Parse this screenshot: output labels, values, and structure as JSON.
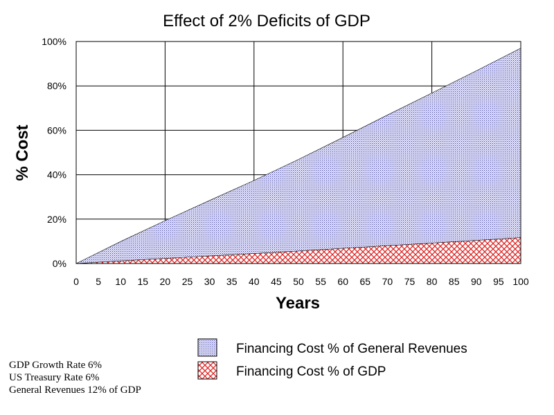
{
  "chart_data": {
    "type": "area",
    "stacked": false,
    "title": "Effect of 2% Deficits of GDP",
    "xlabel": "Years",
    "ylabel": "% Cost",
    "xlim": [
      0,
      100
    ],
    "ylim": [
      0,
      100
    ],
    "x_ticks": [
      "0",
      "5",
      "10",
      "15",
      "20",
      "25",
      "30",
      "35",
      "40",
      "45",
      "50",
      "55",
      "60",
      "65",
      "70",
      "75",
      "80",
      "85",
      "90",
      "95",
      "100"
    ],
    "y_ticks": [
      "0%",
      "20%",
      "40%",
      "60%",
      "80%",
      "100%"
    ],
    "grid": true,
    "legend_position": "bottom",
    "series": [
      {
        "name": "Financing Cost % of General Revenues",
        "color": "#3333aa",
        "pattern": "dots",
        "x": [
          0,
          10,
          20,
          30,
          40,
          50,
          60,
          70,
          80,
          90,
          100
        ],
        "y": [
          0,
          9.9,
          19.3,
          28.4,
          37.4,
          46.9,
          56.8,
          66.9,
          76.8,
          86.8,
          97.0
        ]
      },
      {
        "name": "Financing Cost % of GDP",
        "color": "#dd3333",
        "pattern": "crosshatch",
        "x": [
          0,
          10,
          20,
          30,
          40,
          50,
          60,
          70,
          80,
          90,
          100
        ],
        "y": [
          0,
          1.19,
          2.32,
          3.41,
          4.49,
          5.63,
          6.82,
          8.03,
          9.22,
          10.42,
          11.64
        ]
      }
    ]
  },
  "notes": [
    "GDP Growth Rate 6%",
    "US Treasury Rate 6%",
    "General Revenues 12% of GDP"
  ]
}
